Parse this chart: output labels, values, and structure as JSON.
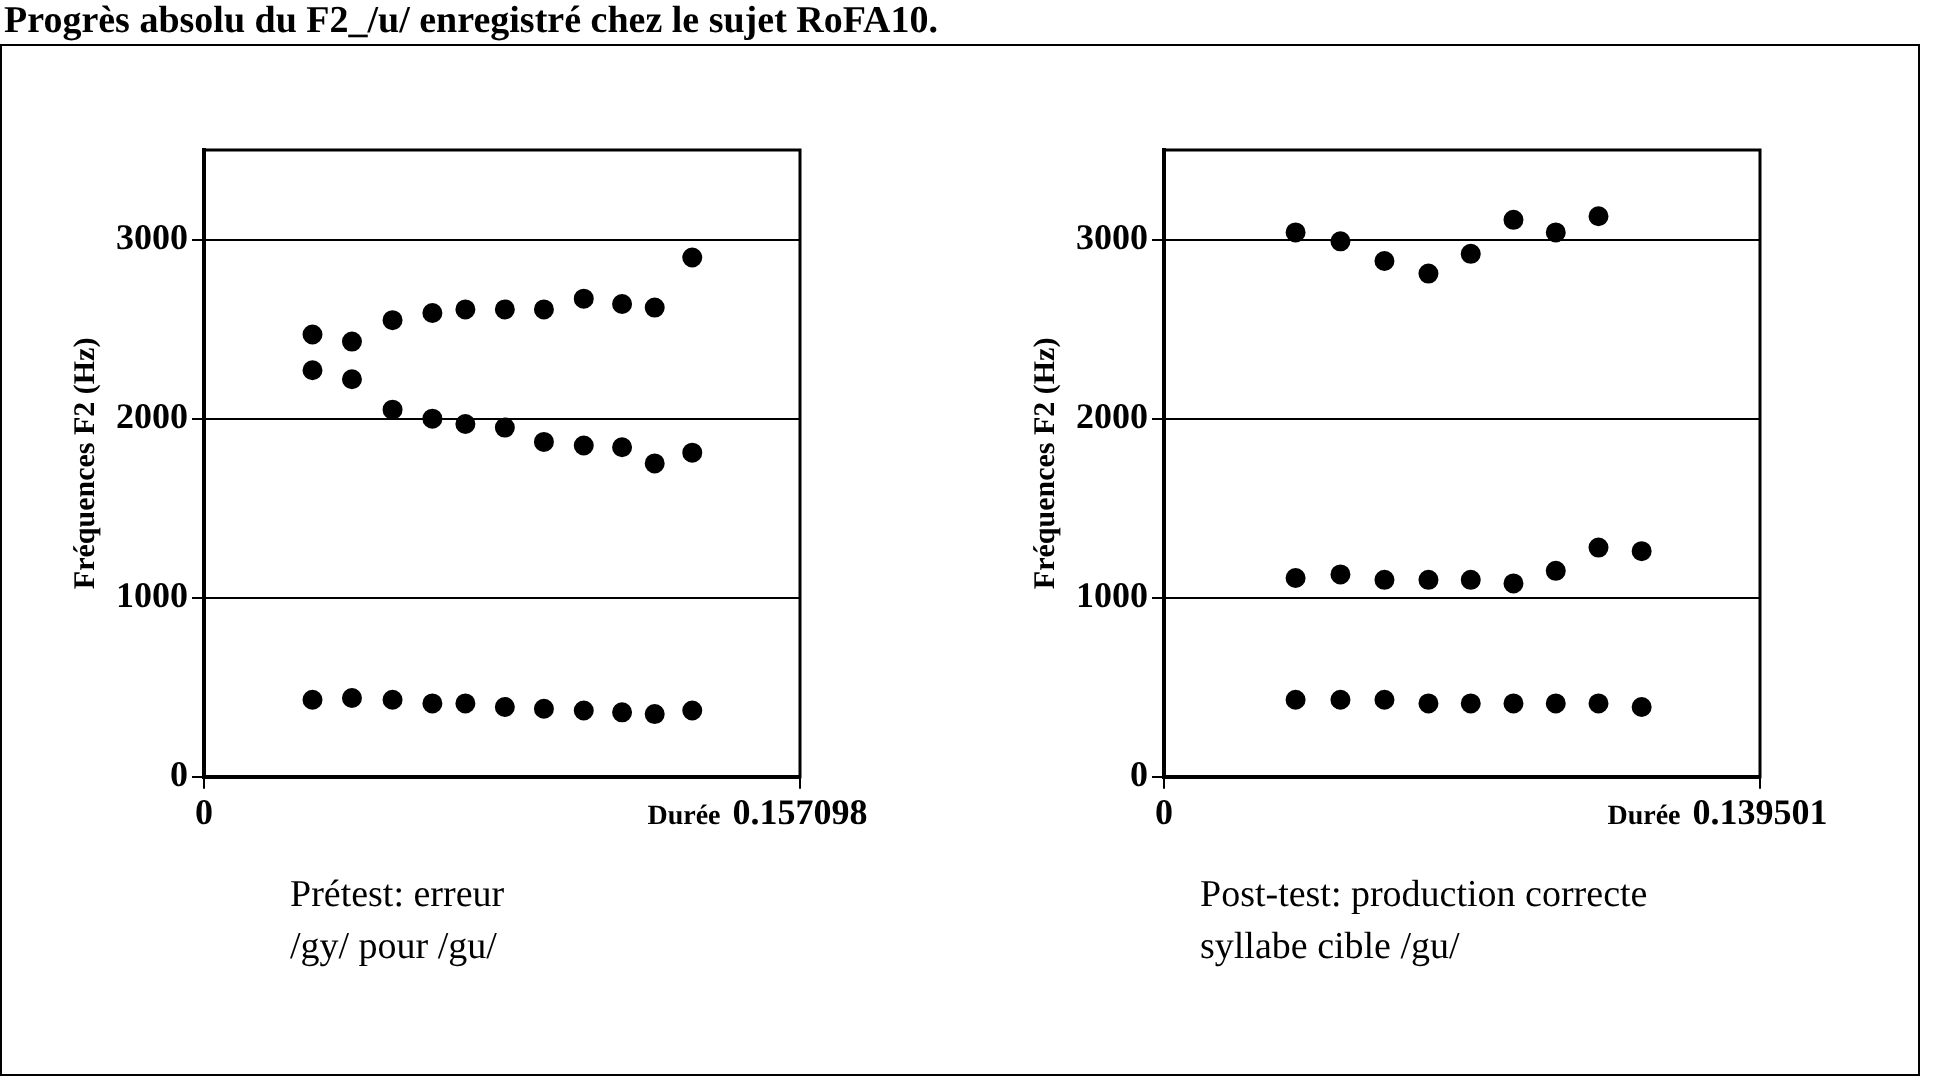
{
  "chart_data": [
    {
      "type": "scatter",
      "title": "Progrès absolu du F2_/u/ enregistré chez le sujet RoFA10.",
      "xlabel": "Durée",
      "ylabel": "Fréquences F2 (Hz)",
      "xlim": [
        0,
        0.157098
      ],
      "xticks": [
        0,
        0.157098
      ],
      "ylim": [
        0,
        3500
      ],
      "yticks": [
        0,
        1000,
        2000,
        3000
      ],
      "grid": "y",
      "legend": false,
      "marker": "circle",
      "x": [
        0.0286,
        0.039,
        0.0497,
        0.0602,
        0.0689,
        0.0793,
        0.0896,
        0.1001,
        0.1102,
        0.1188,
        0.1287
      ],
      "series": [
        {
          "color": "#000000",
          "values": [
            2470,
            2430,
            2550,
            2590,
            2610,
            2610,
            2610,
            2670,
            2640,
            2620,
            2900
          ]
        },
        {
          "color": "#000000",
          "values": [
            2270,
            2220,
            2050,
            2000,
            1970,
            1950,
            1870,
            1850,
            1840,
            1750,
            1810
          ]
        },
        {
          "color": "#000000",
          "values": [
            430,
            440,
            430,
            410,
            410,
            390,
            380,
            370,
            360,
            350,
            370
          ]
        }
      ],
      "annotations": [
        "Prétest: erreur\n/gy/ pour /gu/"
      ]
    },
    {
      "type": "scatter",
      "xlabel": "Durée",
      "ylabel": "Fréquences F2 (Hz)",
      "xlim": [
        0,
        0.139501
      ],
      "xticks": [
        0,
        0.139501
      ],
      "ylim": [
        0,
        3500
      ],
      "yticks": [
        0,
        1000,
        2000,
        3000
      ],
      "grid": "y",
      "legend": false,
      "marker": "circle",
      "x": [
        0.0308,
        0.0413,
        0.0516,
        0.0619,
        0.0718,
        0.0818,
        0.0917,
        0.1017,
        0.1118
      ],
      "series": [
        {
          "color": "#000000",
          "x": [
            0.0308,
            0.0413,
            0.0516,
            0.0619,
            0.0718,
            0.0818,
            0.0917,
            0.1017
          ],
          "values": [
            3040,
            2990,
            2880,
            2810,
            2920,
            3110,
            3040,
            3130
          ]
        },
        {
          "color": "#000000",
          "values": [
            1110,
            1130,
            1100,
            1100,
            1100,
            1080,
            1150,
            1280,
            1260
          ]
        },
        {
          "color": "#000000",
          "values": [
            430,
            430,
            430,
            410,
            410,
            410,
            410,
            410,
            390
          ]
        }
      ],
      "annotations": [
        "Post-test: production correcte\nsyllabe cible /gu/"
      ]
    }
  ]
}
